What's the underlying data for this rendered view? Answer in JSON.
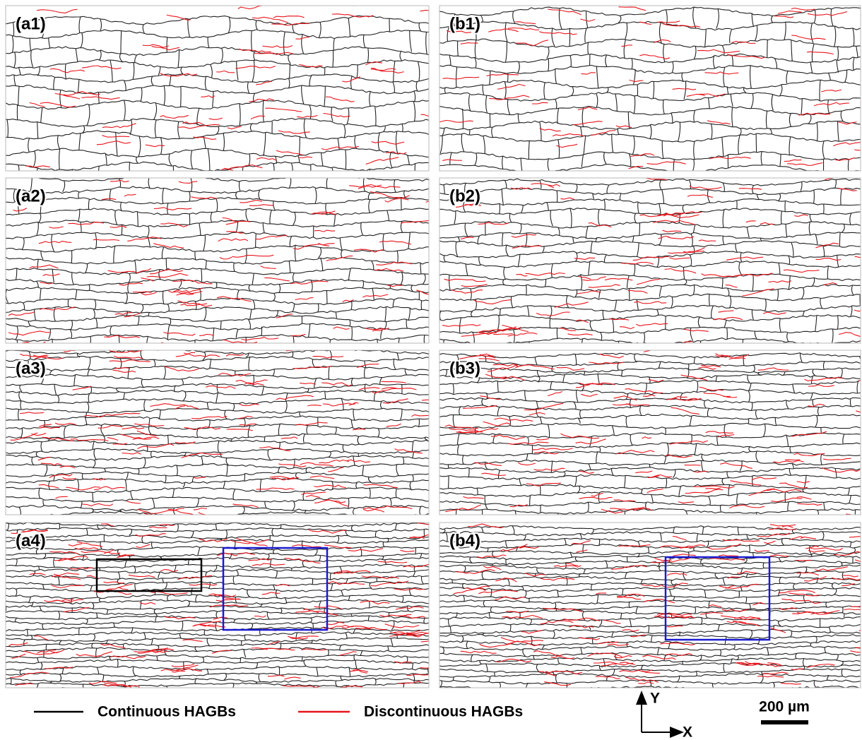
{
  "panels": [
    "(a1)",
    "(b1)",
    "(a2)",
    "(b2)",
    "(a3)",
    "(b3)",
    "(a4)",
    "(b4)"
  ],
  "legend": [
    "Continuous HAGBs",
    "Discontinuous HAGBs"
  ],
  "axes": {
    "y": "Y",
    "x": "X"
  },
  "scale_bar": "200 µm"
}
